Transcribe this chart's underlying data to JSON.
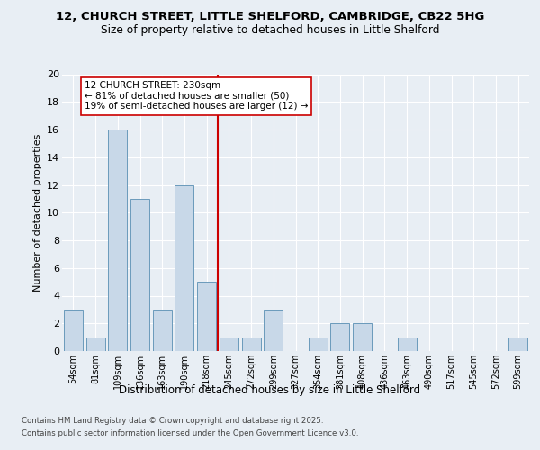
{
  "title1": "12, CHURCH STREET, LITTLE SHELFORD, CAMBRIDGE, CB22 5HG",
  "title2": "Size of property relative to detached houses in Little Shelford",
  "xlabel": "Distribution of detached houses by size in Little Shelford",
  "ylabel": "Number of detached properties",
  "categories": [
    "54sqm",
    "81sqm",
    "109sqm",
    "136sqm",
    "163sqm",
    "190sqm",
    "218sqm",
    "245sqm",
    "272sqm",
    "299sqm",
    "327sqm",
    "354sqm",
    "381sqm",
    "408sqm",
    "436sqm",
    "463sqm",
    "490sqm",
    "517sqm",
    "545sqm",
    "572sqm",
    "599sqm"
  ],
  "values": [
    3,
    1,
    16,
    11,
    3,
    12,
    5,
    1,
    1,
    3,
    0,
    1,
    2,
    2,
    0,
    1,
    0,
    0,
    0,
    0,
    1
  ],
  "bar_color": "#c8d8e8",
  "bar_edge_color": "#6a9abb",
  "vline_color": "#cc0000",
  "annotation_title": "12 CHURCH STREET: 230sqm",
  "annotation_line1": "← 81% of detached houses are smaller (50)",
  "annotation_line2": "19% of semi-detached houses are larger (12) →",
  "footnote1": "Contains HM Land Registry data © Crown copyright and database right 2025.",
  "footnote2": "Contains public sector information licensed under the Open Government Licence v3.0.",
  "ylim": [
    0,
    20
  ],
  "yticks": [
    0,
    2,
    4,
    6,
    8,
    10,
    12,
    14,
    16,
    18,
    20
  ],
  "bg_color": "#e8eef4",
  "plot_bg_color": "#e8eef4"
}
